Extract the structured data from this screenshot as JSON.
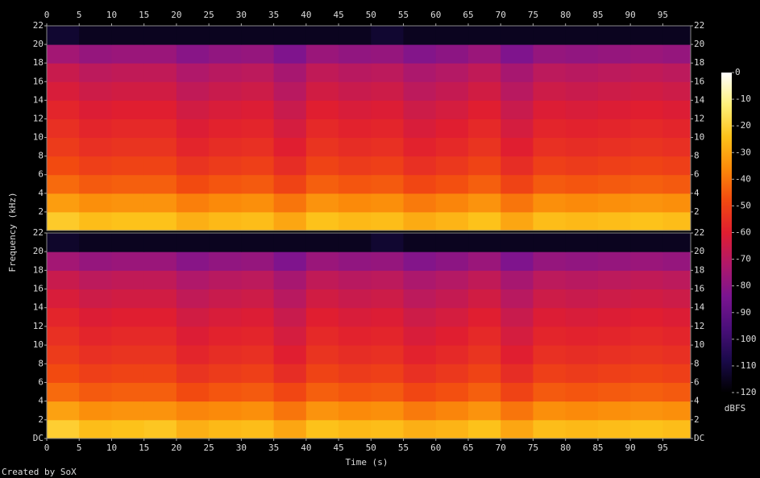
{
  "chart_data": {
    "type": "spectrogram",
    "x_label": "Time (s)",
    "y_label": "Frequency (kHz)",
    "footer": "Created by SoX",
    "xlim": [
      0,
      99.3
    ],
    "xticks": [
      0,
      5,
      10,
      15,
      20,
      25,
      30,
      35,
      40,
      45,
      50,
      55,
      60,
      65,
      70,
      75,
      80,
      85,
      90,
      95
    ],
    "xbins": [
      0,
      5,
      10,
      15,
      20,
      25,
      30,
      35,
      40,
      45,
      50,
      55,
      60,
      65,
      70,
      75,
      80,
      85,
      90,
      95,
      99.3
    ],
    "ylim": [
      0,
      22
    ],
    "ybins": [
      0,
      2,
      4,
      6,
      8,
      10,
      12,
      14,
      16,
      18,
      20,
      22
    ],
    "channels": [
      {
        "yticks": [
          2,
          4,
          6,
          8,
          10,
          12,
          14,
          16,
          18,
          20,
          22
        ],
        "values": [
          [
            -22,
            -25,
            -24,
            -24,
            -28,
            -26,
            -25,
            -30,
            -24,
            -26,
            -25,
            -29,
            -27,
            -24,
            -30,
            -25,
            -26,
            -25,
            -24,
            -25
          ],
          [
            -32,
            -35,
            -34,
            -34,
            -38,
            -36,
            -35,
            -40,
            -34,
            -36,
            -35,
            -39,
            -37,
            -34,
            -40,
            -35,
            -36,
            -35,
            -34,
            -35
          ],
          [
            -42,
            -45,
            -44,
            -44,
            -48,
            -46,
            -45,
            -50,
            -44,
            -46,
            -45,
            -49,
            -47,
            -44,
            -50,
            -45,
            -46,
            -45,
            -44,
            -45
          ],
          [
            -48,
            -51,
            -50,
            -50,
            -54,
            -52,
            -51,
            -56,
            -50,
            -52,
            -51,
            -55,
            -53,
            -50,
            -56,
            -51,
            -52,
            -51,
            -50,
            -51
          ],
          [
            -52,
            -55,
            -54,
            -54,
            -58,
            -56,
            -55,
            -60,
            -54,
            -56,
            -55,
            -59,
            -57,
            -54,
            -60,
            -55,
            -56,
            -55,
            -54,
            -55
          ],
          [
            -55,
            -58,
            -57,
            -57,
            -61,
            -59,
            -58,
            -63,
            -57,
            -59,
            -58,
            -62,
            -60,
            -57,
            -63,
            -58,
            -59,
            -58,
            -57,
            -58
          ],
          [
            -58,
            -61,
            -60,
            -60,
            -64,
            -62,
            -61,
            -66,
            -60,
            -62,
            -61,
            -65,
            -63,
            -60,
            -66,
            -61,
            -62,
            -61,
            -60,
            -61
          ],
          [
            -62,
            -65,
            -64,
            -64,
            -68,
            -66,
            -65,
            -70,
            -64,
            -66,
            -65,
            -69,
            -67,
            -64,
            -70,
            -65,
            -66,
            -65,
            -64,
            -65
          ],
          [
            -66,
            -69,
            -68,
            -68,
            -72,
            -70,
            -69,
            -74,
            -68,
            -70,
            -69,
            -73,
            -71,
            -68,
            -74,
            -69,
            -70,
            -69,
            -68,
            -69
          ],
          [
            -75,
            -78,
            -77,
            -77,
            -81,
            -79,
            -78,
            -83,
            -77,
            -79,
            -78,
            -82,
            -80,
            -77,
            -83,
            -78,
            -79,
            -78,
            -77,
            -78
          ],
          [
            -112,
            -115,
            -115,
            -115,
            -115,
            -115,
            -115,
            -115,
            -115,
            -115,
            -112,
            -115,
            -115,
            -115,
            -115,
            -115,
            -115,
            -115,
            -115,
            -115
          ]
        ]
      },
      {
        "yticks": [
          {
            "value": 0,
            "label": "DC"
          },
          2,
          4,
          6,
          8,
          10,
          12,
          14,
          16,
          18,
          20,
          22
        ],
        "values": [
          [
            -21,
            -25,
            -24,
            -23,
            -28,
            -26,
            -25,
            -30,
            -24,
            -26,
            -25,
            -28,
            -27,
            -24,
            -30,
            -25,
            -26,
            -25,
            -24,
            -25
          ],
          [
            -31,
            -35,
            -34,
            -34,
            -37,
            -36,
            -35,
            -40,
            -34,
            -36,
            -35,
            -39,
            -37,
            -34,
            -40,
            -35,
            -36,
            -35,
            -34,
            -35
          ],
          [
            -42,
            -45,
            -44,
            -44,
            -48,
            -46,
            -45,
            -49,
            -44,
            -46,
            -45,
            -49,
            -47,
            -44,
            -50,
            -45,
            -46,
            -45,
            -44,
            -45
          ],
          [
            -48,
            -51,
            -50,
            -50,
            -54,
            -52,
            -51,
            -56,
            -50,
            -52,
            -51,
            -55,
            -53,
            -50,
            -56,
            -51,
            -52,
            -51,
            -50,
            -51
          ],
          [
            -52,
            -55,
            -54,
            -54,
            -58,
            -56,
            -55,
            -60,
            -54,
            -56,
            -55,
            -59,
            -57,
            -54,
            -60,
            -55,
            -56,
            -55,
            -54,
            -55
          ],
          [
            -55,
            -58,
            -57,
            -57,
            -61,
            -59,
            -58,
            -63,
            -57,
            -59,
            -58,
            -62,
            -60,
            -57,
            -63,
            -58,
            -59,
            -58,
            -57,
            -58
          ],
          [
            -58,
            -61,
            -60,
            -60,
            -64,
            -62,
            -61,
            -66,
            -60,
            -62,
            -61,
            -65,
            -63,
            -60,
            -66,
            -61,
            -62,
            -61,
            -60,
            -61
          ],
          [
            -62,
            -65,
            -64,
            -64,
            -68,
            -66,
            -65,
            -70,
            -64,
            -66,
            -65,
            -69,
            -67,
            -64,
            -70,
            -65,
            -66,
            -65,
            -64,
            -65
          ],
          [
            -66,
            -69,
            -68,
            -68,
            -72,
            -70,
            -69,
            -74,
            -68,
            -70,
            -69,
            -73,
            -71,
            -68,
            -74,
            -69,
            -70,
            -69,
            -68,
            -69
          ],
          [
            -75,
            -78,
            -77,
            -77,
            -81,
            -79,
            -78,
            -83,
            -77,
            -79,
            -78,
            -82,
            -80,
            -77,
            -83,
            -78,
            -79,
            -78,
            -77,
            -78
          ],
          [
            -113,
            -115,
            -115,
            -115,
            -115,
            -115,
            -115,
            -115,
            -115,
            -115,
            -112,
            -115,
            -115,
            -115,
            -115,
            -115,
            -115,
            -115,
            -115,
            -115
          ]
        ]
      }
    ],
    "colorbar": {
      "label": "dBFS",
      "lim": [
        -120,
        0
      ],
      "ticks": [
        -120,
        -110,
        -100,
        -90,
        -80,
        -70,
        -60,
        -50,
        -40,
        -30,
        -20,
        -10,
        0
      ],
      "colors": [
        "#000000",
        "#1a0a4a",
        "#4a0f7a",
        "#7a1490",
        "#b0186a",
        "#e01e30",
        "#f24a10",
        "#fb8a0a",
        "#fdc21a",
        "#fff07a",
        "#ffffff"
      ]
    }
  }
}
